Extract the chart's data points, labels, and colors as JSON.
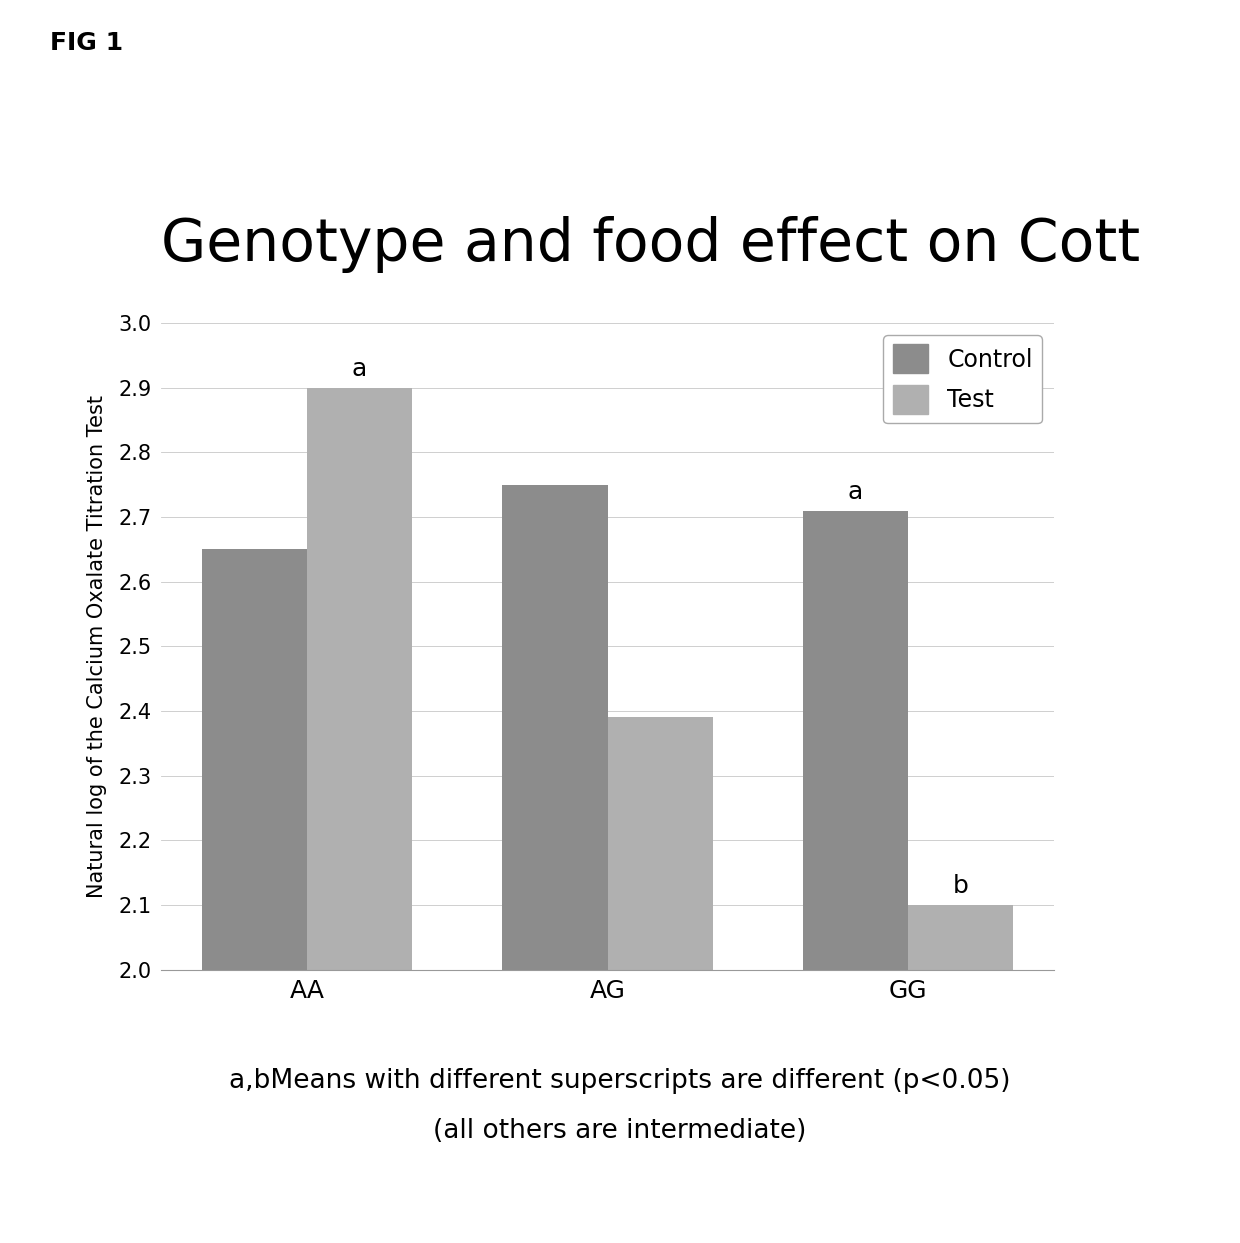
{
  "title": "Genotype and food effect on Cott",
  "ylabel": "Natural log of the Calcium Oxalate Titration Test",
  "categories": [
    "AA",
    "AG",
    "GG"
  ],
  "control_values": [
    2.65,
    2.75,
    2.71
  ],
  "test_values": [
    2.9,
    2.39,
    2.1
  ],
  "control_color": "#8c8c8c",
  "test_color": "#b0b0b0",
  "ylim": [
    2.0,
    3.0
  ],
  "ymin": 2.0,
  "yticks": [
    2.0,
    2.1,
    2.2,
    2.3,
    2.4,
    2.5,
    2.6,
    2.7,
    2.8,
    2.9,
    3.0
  ],
  "bar_width": 0.35,
  "legend_labels": [
    "Control",
    "Test"
  ],
  "annotations": {
    "AA_test": "a",
    "GG_control": "a",
    "GG_test": "b"
  },
  "footnote_line1": "a,bMeans with different superscripts are different (p<0.05)",
  "footnote_line2": "(all others are intermediate)",
  "fig_label": "FIG 1",
  "background_color": "#ffffff",
  "grid_color": "#c8c8c8",
  "title_fontsize": 42,
  "axis_label_fontsize": 15,
  "tick_fontsize": 15,
  "legend_fontsize": 17,
  "annotation_fontsize": 18,
  "footnote_fontsize": 19,
  "fig_label_fontsize": 18
}
